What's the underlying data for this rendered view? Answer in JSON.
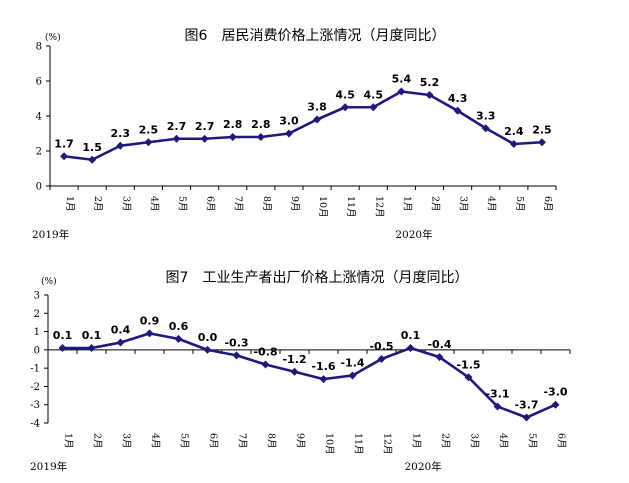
{
  "chart_data": [
    {
      "type": "line",
      "title": "图6　居民消费价格上涨情况（月度同比）",
      "yunit": "(%)",
      "ylim": [
        0,
        8
      ],
      "yticks": [
        0,
        2,
        4,
        6,
        8
      ],
      "categories": [
        "1月",
        "2月",
        "3月",
        "4月",
        "5月",
        "6月",
        "7月",
        "8月",
        "9月",
        "10月",
        "11月",
        "12月",
        "1月",
        "2月",
        "3月",
        "4月",
        "5月",
        "6月"
      ],
      "years": [
        {
          "label": "2019年",
          "start": 0
        },
        {
          "label": "2020年",
          "start": 12
        }
      ],
      "values": [
        1.7,
        1.5,
        2.3,
        2.5,
        2.7,
        2.7,
        2.8,
        2.8,
        3.0,
        3.8,
        4.5,
        4.5,
        5.4,
        5.2,
        4.3,
        3.3,
        2.4,
        2.5
      ],
      "data_labels": [
        "1.7",
        "1.5",
        "2.3",
        "2.5",
        "2.7",
        "2.7",
        "2.8",
        "2.8",
        "3.0",
        "3.8",
        "4.5",
        "4.5",
        "5.4",
        "5.2",
        "4.3",
        "3.3",
        "2.4",
        "2.5"
      ],
      "color": "#1f1a7a",
      "grid": false,
      "legend": "none"
    },
    {
      "type": "line",
      "title": "图7　工业生产者出厂价格上涨情况（月度同比）",
      "yunit": "(%)",
      "ylim": [
        -4,
        3
      ],
      "yticks": [
        -4,
        -3,
        -2,
        -1,
        0,
        1,
        2,
        3
      ],
      "categories": [
        "1月",
        "2月",
        "3月",
        "4月",
        "5月",
        "6月",
        "7月",
        "8月",
        "9月",
        "10月",
        "11月",
        "12月",
        "1月",
        "2月",
        "3月",
        "4月",
        "5月",
        "6月"
      ],
      "years": [
        {
          "label": "2019年",
          "start": 0
        },
        {
          "label": "2020年",
          "start": 12
        }
      ],
      "values": [
        0.1,
        0.1,
        0.4,
        0.9,
        0.6,
        0.0,
        -0.3,
        -0.8,
        -1.2,
        -1.6,
        -1.4,
        -0.5,
        0.1,
        -0.4,
        -1.5,
        -3.1,
        -3.7,
        -3.0
      ],
      "data_labels": [
        "0.1",
        "0.1",
        "0.4",
        "0.9",
        "0.6",
        "0.0",
        "-0.3",
        "-0.8",
        "-1.2",
        "-1.6",
        "-1.4",
        "-0.5",
        "0.1",
        "-0.4",
        "-1.5",
        "-3.1",
        "-3.7",
        "-3.0"
      ],
      "color": "#1f1a7a",
      "grid": false,
      "legend": "none"
    }
  ]
}
